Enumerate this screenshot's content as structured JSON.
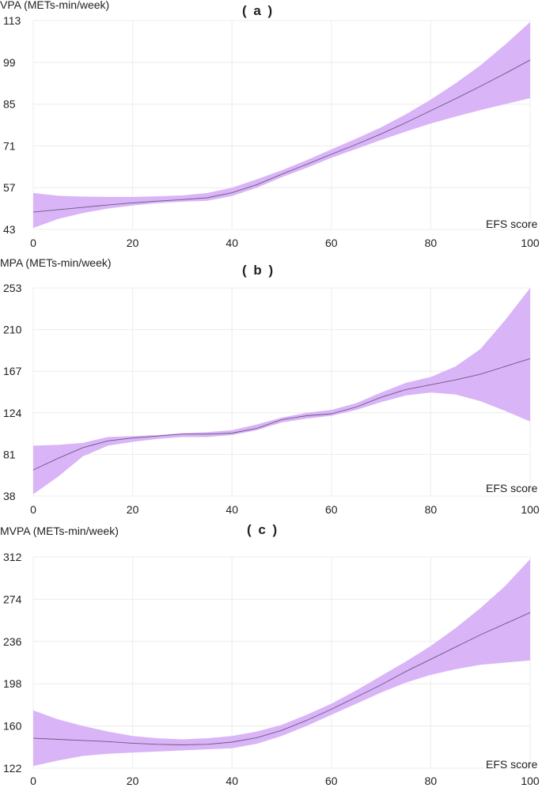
{
  "figure": {
    "colors": {
      "band": "#d9b4f7",
      "line": "#6b5a80",
      "grid": "#ececec"
    }
  },
  "chart_data": [
    {
      "panel_title": "( a )",
      "type": "line",
      "ylabel": "VPA (METs-min/week)",
      "xlabel": "EFS score",
      "xlim": [
        0,
        100
      ],
      "ylim": [
        43,
        113
      ],
      "xticks": [
        0,
        20,
        40,
        60,
        80,
        100
      ],
      "yticks": [
        43,
        57,
        71,
        85,
        99,
        113
      ],
      "grid": true,
      "x": [
        0,
        5,
        10,
        15,
        20,
        25,
        30,
        35,
        40,
        45,
        50,
        55,
        60,
        65,
        70,
        75,
        80,
        85,
        90,
        95,
        100
      ],
      "series": [
        {
          "values": [
            48.8,
            49.6,
            50.4,
            51.2,
            51.9,
            52.5,
            53.0,
            53.6,
            55.3,
            58.0,
            61.5,
            64.8,
            68.2,
            71.5,
            75.0,
            78.8,
            82.8,
            86.8,
            91.0,
            95.3,
            99.8
          ],
          "lower": [
            43.5,
            46.5,
            48.5,
            50.0,
            51.0,
            51.8,
            52.3,
            52.6,
            54.2,
            57.0,
            60.5,
            63.6,
            67.0,
            70.0,
            73.0,
            75.8,
            78.5,
            80.8,
            83.0,
            85.0,
            87.0
          ],
          "upper": [
            55.2,
            54.3,
            54.0,
            53.9,
            53.9,
            54.1,
            54.4,
            55.2,
            57.0,
            59.8,
            62.8,
            66.2,
            69.8,
            73.4,
            77.2,
            81.6,
            86.5,
            92.0,
            98.0,
            105.0,
            112.5
          ]
        }
      ]
    },
    {
      "panel_title": "( b )",
      "type": "line",
      "ylabel": "MPA (METs-min/week)",
      "xlabel": "EFS score",
      "xlim": [
        0,
        100
      ],
      "ylim": [
        38,
        253
      ],
      "xticks": [
        0,
        20,
        40,
        60,
        80,
        100
      ],
      "yticks": [
        38,
        81,
        124,
        167,
        210,
        253
      ],
      "grid": true,
      "x": [
        0,
        5,
        10,
        15,
        20,
        25,
        30,
        35,
        40,
        45,
        50,
        55,
        60,
        65,
        70,
        75,
        80,
        85,
        90,
        95,
        100
      ],
      "series": [
        {
          "values": [
            65,
            77,
            88,
            95,
            98,
            100,
            102,
            102,
            103,
            108,
            117,
            121,
            123,
            130,
            140,
            148,
            153,
            158,
            164,
            172,
            180
          ],
          "lower": [
            40,
            58,
            79,
            90,
            94,
            97,
            99,
            99,
            101,
            106,
            114,
            118,
            121,
            127,
            135,
            142,
            145,
            143,
            136,
            126,
            115
          ],
          "upper": [
            90,
            91,
            93,
            99,
            100,
            101,
            103,
            104,
            106,
            112,
            119,
            124,
            127,
            134,
            145,
            155,
            161,
            172,
            190,
            220,
            253
          ]
        }
      ]
    },
    {
      "panel_title": "( c )",
      "type": "line",
      "ylabel": "MVPA (METs-min/week)",
      "xlabel": "EFS score",
      "xlim": [
        0,
        100
      ],
      "ylim": [
        122,
        312
      ],
      "xticks": [
        0,
        20,
        40,
        60,
        80,
        100
      ],
      "yticks": [
        122,
        160,
        198,
        236,
        274,
        312
      ],
      "grid": true,
      "x": [
        0,
        5,
        10,
        15,
        20,
        25,
        30,
        35,
        40,
        45,
        50,
        55,
        60,
        65,
        70,
        75,
        80,
        85,
        90,
        95,
        100
      ],
      "series": [
        {
          "values": [
            149,
            148,
            147,
            146,
            144.5,
            143.5,
            143,
            143.5,
            145.5,
            149.5,
            156,
            165,
            175,
            186,
            197,
            209,
            220,
            231,
            242,
            252,
            262
          ],
          "lower": [
            124,
            129,
            133,
            135,
            136,
            137,
            138,
            139,
            140,
            144,
            151,
            160,
            170,
            180,
            190,
            199,
            206,
            211,
            215,
            217,
            219
          ],
          "upper": [
            174,
            166,
            160,
            155,
            151,
            149,
            148,
            149,
            151,
            155,
            161,
            170,
            180,
            192,
            205,
            218,
            232,
            248,
            266,
            286,
            310
          ]
        }
      ]
    }
  ]
}
